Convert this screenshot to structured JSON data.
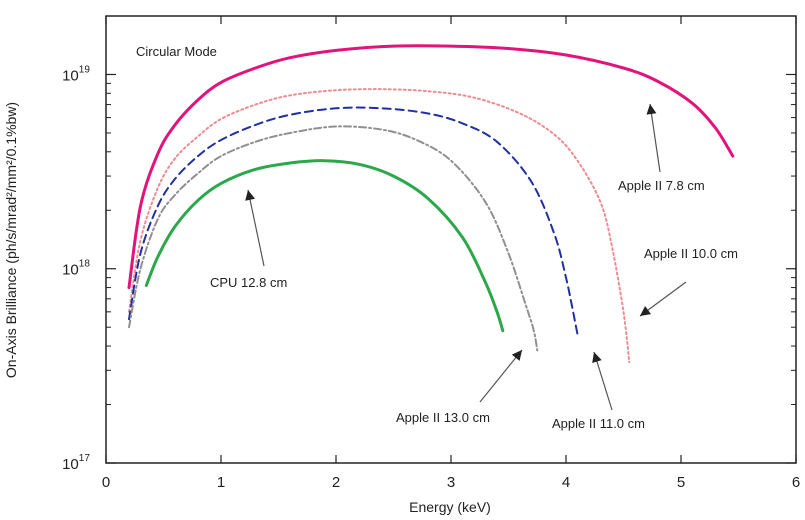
{
  "chart_data": {
    "type": "line",
    "xlabel": "Energy (keV)",
    "ylabel": "On-Axis Brilliance (ph/s/mrad²/mm²/0.1%bw)",
    "xlim": [
      0,
      6
    ],
    "ylim": [
      1e+17,
      2e+19
    ],
    "y_scale": "log",
    "x_ticks": [
      "0",
      "1",
      "2",
      "3",
      "4",
      "5",
      "6"
    ],
    "y_ticks": [
      {
        "base": "10",
        "exp": "17",
        "value": 1e+17
      },
      {
        "base": "10",
        "exp": "18",
        "value": 1e+18
      },
      {
        "base": "10",
        "exp": "19",
        "value": 1e+19
      }
    ],
    "mode_label": "Circular Mode",
    "series": [
      {
        "name": "Apple II 7.8 cm",
        "color": "#e0147a",
        "dash": "solid",
        "width": 3,
        "x": [
          0.2,
          0.3,
          0.45,
          0.6,
          0.8,
          1.0,
          1.3,
          1.6,
          2.0,
          2.5,
          3.0,
          3.5,
          4.0,
          4.5,
          4.8,
          5.1,
          5.3,
          5.45
        ],
        "y": [
          8e+17,
          2.1e+18,
          3.9e+18,
          5.5e+18,
          7.4e+18,
          9.1e+18,
          1.08e+19,
          1.22e+19,
          1.33e+19,
          1.4e+19,
          1.4e+19,
          1.36e+19,
          1.26e+19,
          1.08e+19,
          9.2e+18,
          7.1e+18,
          5.3e+18,
          3.8e+18
        ]
      },
      {
        "name": "Apple II 10.0 cm",
        "color": "#f08a92",
        "dash": "2,3",
        "width": 2,
        "x": [
          0.2,
          0.3,
          0.45,
          0.6,
          0.8,
          1.0,
          1.3,
          1.6,
          2.0,
          2.4,
          2.8,
          3.2,
          3.6,
          3.9,
          4.1,
          4.3,
          4.4,
          4.5,
          4.55
        ],
        "y": [
          6e+17,
          1.4e+18,
          2.6e+18,
          3.7e+18,
          4.8e+18,
          5.9e+18,
          7e+18,
          7.8e+18,
          8.3e+18,
          8.4e+18,
          8.2e+18,
          7.6e+18,
          6.3e+18,
          4.9e+18,
          3.6e+18,
          2.2e+18,
          1.3e+18,
          6e+17,
          3.3e+17
        ]
      },
      {
        "name": "Apple II 11.0 cm",
        "color": "#2030a0",
        "dash": "8,5",
        "width": 2,
        "x": [
          0.2,
          0.3,
          0.45,
          0.6,
          0.8,
          1.0,
          1.3,
          1.6,
          2.0,
          2.4,
          2.8,
          3.1,
          3.4,
          3.7,
          3.9,
          4.0,
          4.05,
          4.1
        ],
        "y": [
          5.5e+17,
          1.2e+18,
          2.1e+18,
          2.9e+18,
          3.8e+18,
          4.6e+18,
          5.5e+18,
          6.2e+18,
          6.7e+18,
          6.7e+18,
          6.3e+18,
          5.6e+18,
          4.5e+18,
          2.8e+18,
          1.5e+18,
          9e+17,
          6.5e+17,
          4.6e+17
        ]
      },
      {
        "name": "Apple II 13.0 cm",
        "color": "#909090",
        "dash": "7,3,2,3",
        "width": 2,
        "x": [
          0.2,
          0.3,
          0.45,
          0.6,
          0.8,
          1.0,
          1.3,
          1.6,
          2.0,
          2.4,
          2.7,
          3.0,
          3.3,
          3.5,
          3.65,
          3.72,
          3.75
        ],
        "y": [
          5e+17,
          1e+18,
          1.8e+18,
          2.4e+18,
          3.1e+18,
          3.8e+18,
          4.5e+18,
          5e+18,
          5.4e+18,
          5.2e+18,
          4.6e+18,
          3.6e+18,
          2.2e+18,
          1.2e+18,
          6.5e+17,
          4.8e+17,
          3.8e+17
        ]
      },
      {
        "name": "CPU 12.8 cm",
        "color": "#2aa84a",
        "dash": "solid",
        "width": 3,
        "x": [
          0.35,
          0.45,
          0.6,
          0.8,
          1.0,
          1.3,
          1.6,
          1.9,
          2.2,
          2.5,
          2.8,
          3.1,
          3.3,
          3.4,
          3.45
        ],
        "y": [
          8.2e+17,
          1.15e+18,
          1.65e+18,
          2.25e+18,
          2.75e+18,
          3.25e+18,
          3.5e+18,
          3.6e+18,
          3.45e+18,
          3e+18,
          2.3e+18,
          1.45e+18,
          8.5e+17,
          6e+17,
          4.8e+17
        ]
      }
    ],
    "annotations": [
      {
        "text": "Apple II 7.8 cm",
        "series": 0
      },
      {
        "text": "Apple II 10.0 cm",
        "series": 1
      },
      {
        "text": "Apple II 11.0 cm",
        "series": 2
      },
      {
        "text": "Apple II 13.0 cm",
        "series": 3
      },
      {
        "text": "CPU 12.8 cm",
        "series": 4
      }
    ]
  }
}
